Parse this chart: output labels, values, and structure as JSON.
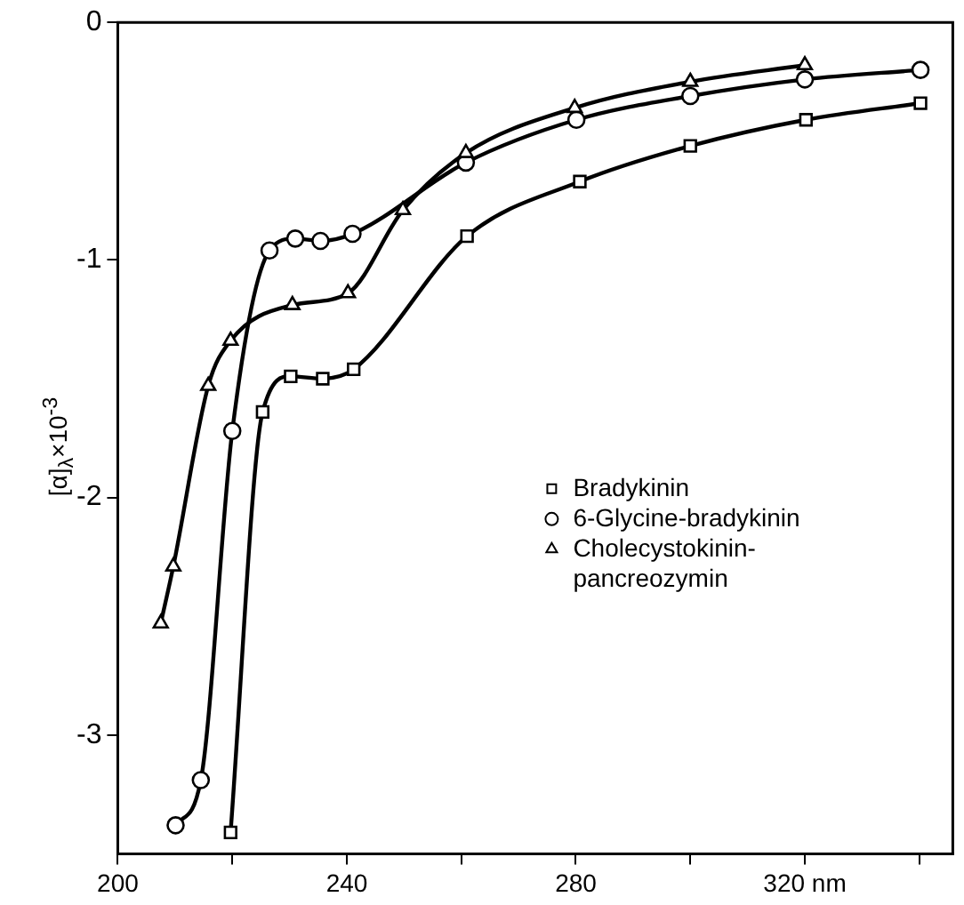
{
  "chart_data": {
    "type": "line",
    "xlabel": null,
    "ylabel": "[α]$_{λ}$×10$^{-3}$",
    "xlim": [
      200,
      346
    ],
    "ylim": [
      -3.5,
      0
    ],
    "xticks": [
      200,
      {
        "value": 220,
        "label": null
      },
      240,
      {
        "value": 260,
        "label": null
      },
      280,
      {
        "value": 300,
        "label": null
      },
      {
        "value": 320,
        "label": "320 nm"
      },
      {
        "value": 340,
        "label": null
      }
    ],
    "yticks": [
      0,
      -1,
      -2,
      -3
    ],
    "grid": false,
    "legend": "center right",
    "line_style": "solid",
    "series": [
      {
        "name": "Bradykinin",
        "color": "#000000",
        "marker": "square",
        "x": [
          219.7,
          225.3,
          230.2,
          235.8,
          241.2,
          261,
          280.7,
          300,
          320.2,
          340.2
        ],
        "values": [
          -3.41,
          -1.64,
          -1.49,
          -1.5,
          -1.46,
          -0.9,
          -0.67,
          -0.52,
          -0.41,
          -0.34
        ]
      },
      {
        "name": "6-Glycine-bradykinin",
        "color": "#000000",
        "marker": "circle",
        "x": [
          210.1,
          214.5,
          220,
          226.5,
          231,
          235.4,
          241,
          260.8,
          280.1,
          300,
          320,
          340.2
        ],
        "values": [
          -3.38,
          -3.19,
          -1.72,
          -0.96,
          -0.91,
          -0.92,
          -0.89,
          -0.59,
          -0.41,
          -0.31,
          -0.24,
          -0.2
        ]
      },
      {
        "name": "Cholecystokinin-pancreozymin",
        "color": "#000000",
        "marker": "triangle",
        "x": [
          207.5,
          209.7,
          215.8,
          219.7,
          230.5,
          240.2,
          249.8,
          260.8,
          279.8,
          300,
          320
        ],
        "values": [
          -2.53,
          -2.29,
          -1.53,
          -1.34,
          -1.19,
          -1.14,
          -0.79,
          -0.55,
          -0.36,
          -0.25,
          -0.18
        ]
      }
    ]
  }
}
